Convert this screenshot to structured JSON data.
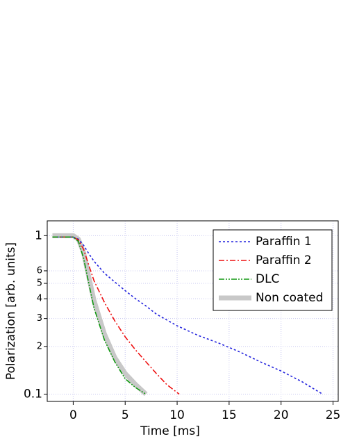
{
  "chart_data": {
    "type": "line",
    "xlabel": "Time [ms]",
    "ylabel": "Polarization [arb. units]",
    "xlim": [
      -2.5,
      25.5
    ],
    "xticks": [
      0,
      5,
      10,
      15,
      20,
      25
    ],
    "ylim": [
      0.09,
      1.24
    ],
    "yscale": "log",
    "yticks": [
      {
        "value": 0.1,
        "label": "0.1"
      },
      {
        "value": 0.2,
        "label": "2"
      },
      {
        "value": 0.3,
        "label": "3"
      },
      {
        "value": 0.4,
        "label": "4"
      },
      {
        "value": 0.5,
        "label": "5"
      },
      {
        "value": 0.6,
        "label": "6"
      },
      1
    ],
    "grid": true,
    "legend": "upper right",
    "series": [
      {
        "name": "Paraffin 1",
        "color": "#2222dd",
        "style": "dotted",
        "x": [
          -2,
          0,
          0.5,
          1,
          1.5,
          2,
          3,
          4,
          5,
          6,
          7,
          8,
          10,
          12,
          14,
          16,
          18,
          20,
          22,
          24
        ],
        "values": [
          0.98,
          0.98,
          0.95,
          0.87,
          0.77,
          0.69,
          0.58,
          0.51,
          0.45,
          0.4,
          0.36,
          0.32,
          0.27,
          0.235,
          0.21,
          0.185,
          0.16,
          0.14,
          0.12,
          0.1
        ]
      },
      {
        "name": "Paraffin 2",
        "color": "#ee1111",
        "style": "dashdot",
        "x": [
          -2,
          0,
          0.5,
          1,
          1.5,
          2,
          3,
          4,
          5,
          6,
          7,
          8,
          9,
          10.2
        ],
        "values": [
          0.98,
          0.98,
          0.94,
          0.82,
          0.65,
          0.52,
          0.38,
          0.29,
          0.23,
          0.19,
          0.16,
          0.135,
          0.115,
          0.1
        ]
      },
      {
        "name": "DLC",
        "color": "#119911",
        "style": "dashdotdot",
        "x": [
          -2,
          0,
          0.5,
          1,
          1.5,
          2,
          3,
          4,
          5,
          6,
          7
        ],
        "values": [
          0.98,
          0.98,
          0.92,
          0.72,
          0.5,
          0.35,
          0.22,
          0.16,
          0.125,
          0.11,
          0.1
        ]
      },
      {
        "name": "Non coated",
        "color": "#c8c8c8",
        "style": "thick",
        "x": [
          -2,
          0,
          0.5,
          1,
          1.5,
          2,
          3,
          4,
          5,
          6,
          7
        ],
        "values": [
          1.0,
          1.0,
          0.95,
          0.78,
          0.55,
          0.39,
          0.24,
          0.17,
          0.135,
          0.115,
          0.1
        ]
      }
    ]
  }
}
